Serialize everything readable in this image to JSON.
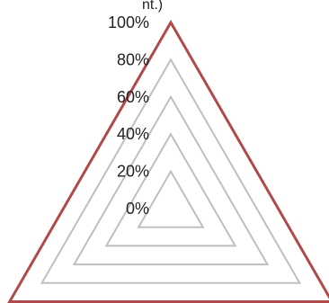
{
  "chart_data": {
    "type": "radar",
    "categories": [
      "",
      "",
      ""
    ],
    "top_label_fragment": "nt.)",
    "radial_axis": {
      "min": 0,
      "max": 1,
      "ticks": [
        0,
        0.2,
        0.4,
        0.6,
        0.8,
        1.0
      ],
      "tick_labels": [
        "0%",
        "20%",
        "40%",
        "60%",
        "80%",
        "100%"
      ]
    },
    "series": [
      {
        "values": [
          1.0,
          1.0,
          1.0
        ],
        "color": "#b04a4a"
      }
    ],
    "grid": true,
    "grid_color": "#bfbfbf"
  }
}
